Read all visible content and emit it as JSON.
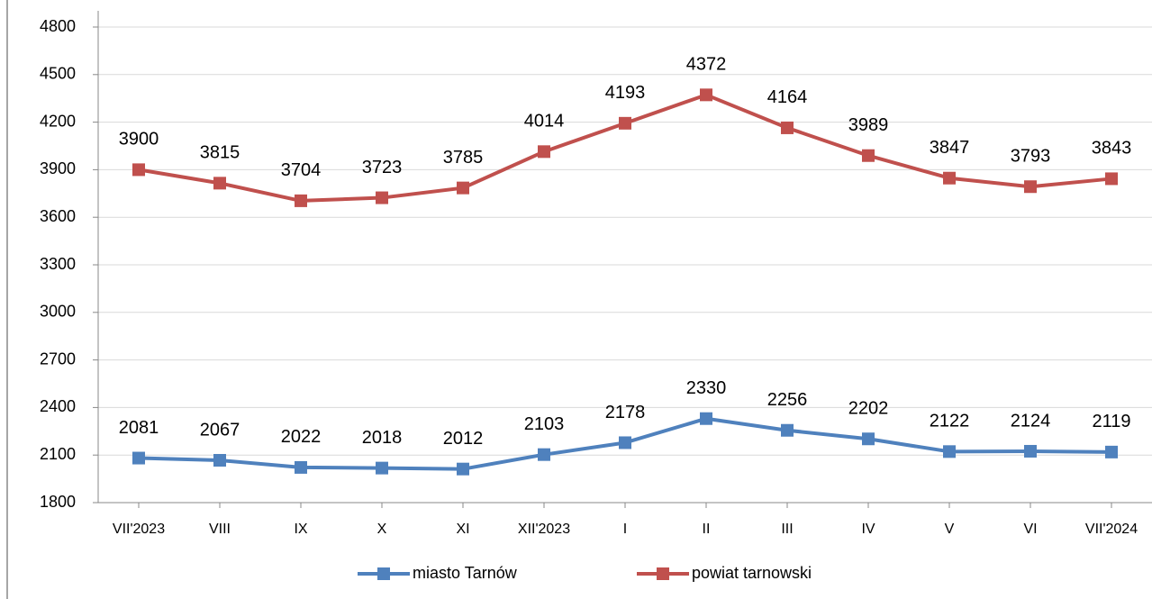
{
  "chart_data": {
    "type": "line",
    "categories": [
      "VII'2023",
      "VIII",
      "IX",
      "X",
      "XI",
      "XII'2023",
      "I",
      "II",
      "III",
      "IV",
      "V",
      "VI",
      "VII'2024"
    ],
    "series": [
      {
        "name": "miasto Tarnów",
        "color": "#4f81bd",
        "values": [
          2081,
          2067,
          2022,
          2018,
          2012,
          2103,
          2178,
          2330,
          2256,
          2202,
          2122,
          2124,
          2119
        ]
      },
      {
        "name": "powiat tarnowski",
        "color": "#c0504d",
        "values": [
          3900,
          3815,
          3704,
          3723,
          3785,
          4014,
          4193,
          4372,
          4164,
          3989,
          3847,
          3793,
          3843
        ]
      }
    ],
    "ylim": [
      1800,
      4800
    ],
    "yticks": [
      1800,
      2100,
      2400,
      2700,
      3000,
      3300,
      3600,
      3900,
      4200,
      4500,
      4800
    ],
    "grid": true,
    "legend": "bottom"
  }
}
